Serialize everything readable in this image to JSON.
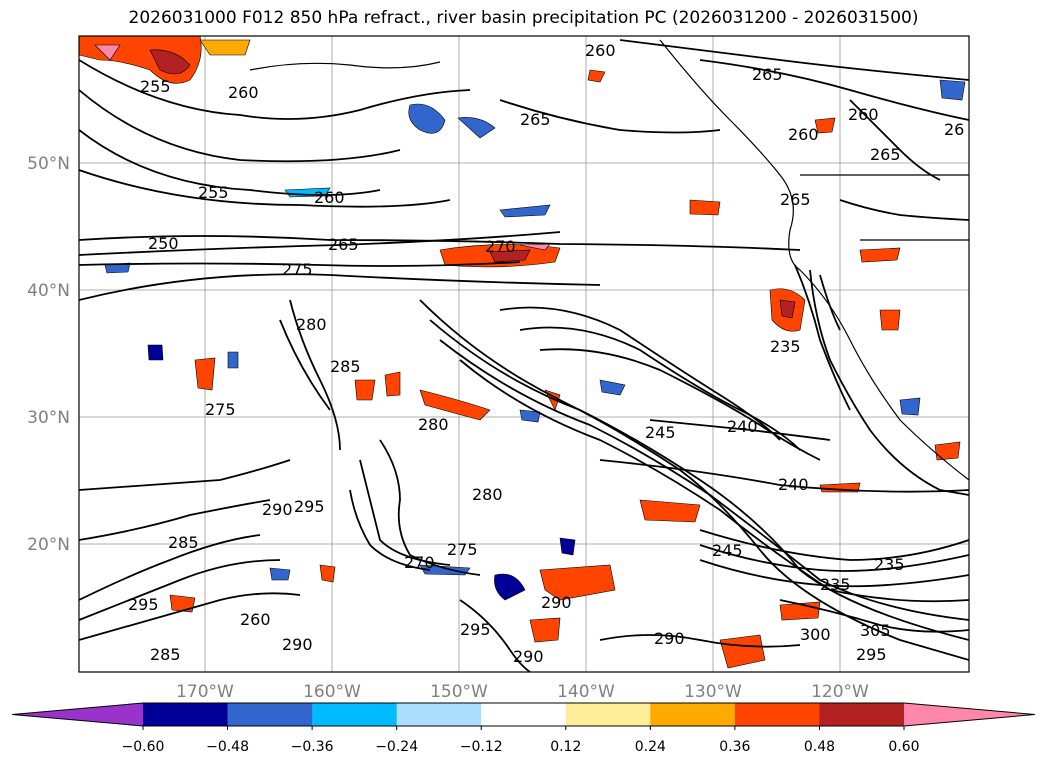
{
  "title": "2026031000 F012 850 hPa refract., river basin precipitation PC (2026031200 - 2026031500)",
  "map": {
    "lat_labels": [
      "50°N",
      "40°N",
      "30°N",
      "20°N"
    ],
    "lon_labels": [
      "170°W",
      "160°W",
      "150°W",
      "140°W",
      "130°W",
      "120°W"
    ],
    "contour_labels": [
      "255",
      "260",
      "265",
      "260",
      "265",
      "260",
      "265",
      "260",
      "26",
      "255",
      "260",
      "250",
      "265",
      "270",
      "275",
      "280",
      "285",
      "275",
      "280",
      "245",
      "240",
      "240",
      "280",
      "290",
      "295",
      "285",
      "270",
      "275",
      "245",
      "235",
      "295",
      "290",
      "285",
      "290",
      "295",
      "290",
      "290",
      "300",
      "305",
      "295",
      "235",
      "235",
      "260",
      "265"
    ]
  },
  "colorbar": {
    "tick_labels": [
      "−0.60",
      "−0.48",
      "−0.36",
      "−0.24",
      "−0.12",
      "0.12",
      "0.24",
      "0.36",
      "0.48",
      "0.60"
    ],
    "colors": [
      "#9933cc",
      "#000099",
      "#3366cc",
      "#00bbff",
      "#aaddff",
      "#ffffff",
      "#ffee99",
      "#ffaa00",
      "#ff4400",
      "#b22222",
      "#ff88aa"
    ]
  }
}
